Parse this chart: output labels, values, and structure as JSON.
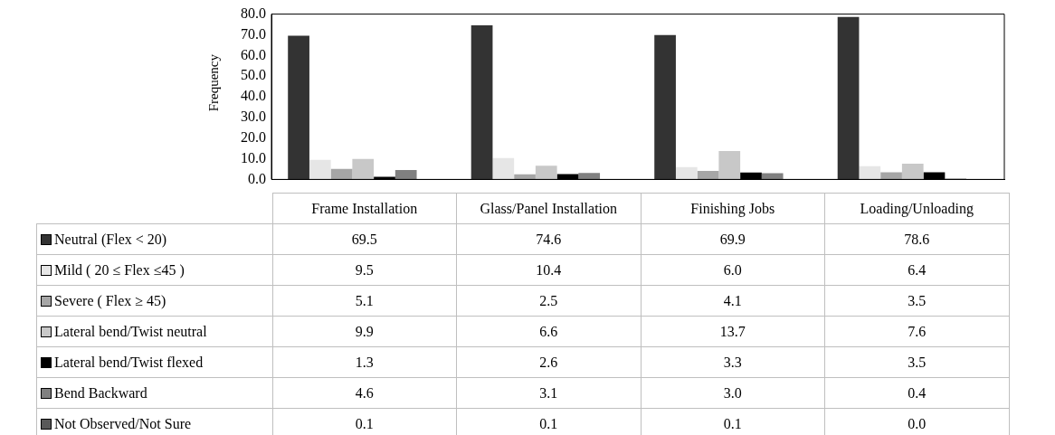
{
  "chart_data": {
    "type": "bar",
    "ylabel": "Frequency",
    "categories": [
      "Frame Installation",
      "Glass/Panel Installation",
      "Finishing Jobs",
      "Loading/Unloading"
    ],
    "series": [
      {
        "name": "Neutral (Flex < 20)",
        "color": "#333333",
        "values": [
          69.5,
          74.6,
          69.9,
          78.6
        ],
        "value_labels": [
          "69.5",
          "74.6",
          "69.9",
          "78.6"
        ]
      },
      {
        "name": "Mild ( 20 ≤ Flex ≤45 )",
        "color": "#e6e6e6",
        "values": [
          9.5,
          10.4,
          6.0,
          6.4
        ],
        "value_labels": [
          "9.5",
          "10.4",
          "6.0",
          "6.4"
        ]
      },
      {
        "name": "Severe ( Flex ≥ 45)",
        "color": "#a6a6a6",
        "values": [
          5.1,
          2.5,
          4.1,
          3.5
        ],
        "value_labels": [
          "5.1",
          "2.5",
          "4.1",
          "3.5"
        ]
      },
      {
        "name": "Lateral bend/Twist neutral",
        "color": "#c8c8c8",
        "values": [
          9.9,
          6.6,
          13.7,
          7.6
        ],
        "value_labels": [
          "9.9",
          "6.6",
          "13.7",
          "7.6"
        ]
      },
      {
        "name": "Lateral bend/Twist flexed",
        "color": "#000000",
        "values": [
          1.3,
          2.6,
          3.3,
          3.5
        ],
        "value_labels": [
          "1.3",
          "2.6",
          "3.3",
          "3.5"
        ]
      },
      {
        "name": "Bend Backward",
        "color": "#808080",
        "values": [
          4.6,
          3.1,
          3.0,
          0.4
        ],
        "value_labels": [
          "4.6",
          "3.1",
          "3.0",
          "0.4"
        ]
      },
      {
        "name": "Not Observed/Not Sure",
        "color": "#595959",
        "values": [
          0.1,
          0.1,
          0.1,
          0.0
        ],
        "value_labels": [
          "0.1",
          "0.1",
          "0.1",
          "0.0"
        ]
      }
    ],
    "ylim": [
      0,
      80
    ],
    "yticks": [
      {
        "value": 0,
        "label": "0.0"
      },
      {
        "value": 10,
        "label": "10.0"
      },
      {
        "value": 20,
        "label": "20.0"
      },
      {
        "value": 30,
        "label": "30.0"
      },
      {
        "value": 40,
        "label": "40.0"
      },
      {
        "value": 50,
        "label": "50.0"
      },
      {
        "value": 60,
        "label": "60.0"
      },
      {
        "value": 70,
        "label": "70.0"
      },
      {
        "value": 80,
        "label": "80.0"
      }
    ],
    "grid": false,
    "legend": "bottom"
  }
}
